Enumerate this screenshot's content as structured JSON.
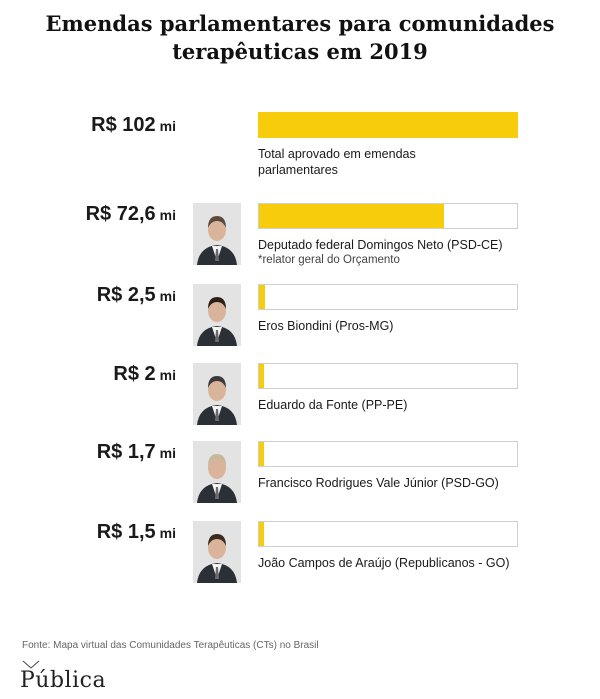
{
  "title_line1": "Emendas parlamentares para comunidades",
  "title_line2": "terapêuticas em 2019",
  "chart_data": {
    "type": "bar",
    "title": "Emendas parlamentares para comunidades terapêuticas em 2019",
    "unit": "mi",
    "max": 102,
    "rows": [
      {
        "amount": "R$ 102",
        "unit": "mi",
        "value": 102,
        "label": "Total aprovado em emendas parlamentares",
        "note": "",
        "photo": false
      },
      {
        "amount": "R$ 72,6",
        "unit": "mi",
        "value": 72.6,
        "label": "Deputado federal Domingos Neto (PSD-CE)",
        "note": "*relator geral do Orçamento",
        "photo": true
      },
      {
        "amount": "R$ 2,5",
        "unit": "mi",
        "value": 2.5,
        "label": "Eros Biondini (Pros-MG)",
        "note": "",
        "photo": true
      },
      {
        "amount": "R$ 2",
        "unit": "mi",
        "value": 2,
        "label": "Eduardo da Fonte (PP-PE)",
        "note": "",
        "photo": true
      },
      {
        "amount": "R$ 1,7",
        "unit": "mi",
        "value": 1.7,
        "label": "Francisco Rodrigues Vale Júnior  (PSD-GO)",
        "note": "",
        "photo": true
      },
      {
        "amount": "R$ 1,5",
        "unit": "mi",
        "value": 1.5,
        "label": "João Campos de Araújo (Republicanos - GO)",
        "note": "",
        "photo": true
      }
    ]
  },
  "colors": {
    "bar": "#f7cd0b",
    "track_border": "#cfcfcf"
  },
  "source": "Fonte: Mapa virtual das Comunidades Terapêuticas (CTs) no Brasil",
  "logo": "Pública"
}
